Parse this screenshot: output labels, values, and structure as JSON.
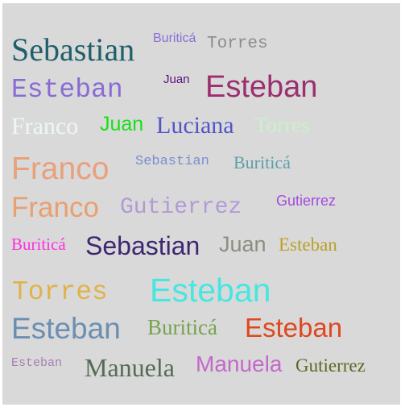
{
  "words": [
    {
      "text": "Sebastian",
      "color": "#1f5f6b"
    },
    {
      "text": "Buriticá",
      "color": "#8a6fd8"
    },
    {
      "text": "Torres",
      "color": "#8c8c8c"
    },
    {
      "text": "Esteban",
      "color": "#8a6bd6"
    },
    {
      "text": "Juan",
      "color": "#5a0f7a"
    },
    {
      "text": "Esteban",
      "color": "#9b2f6f"
    },
    {
      "text": "Franco",
      "color": "#eef8f2"
    },
    {
      "text": "Juan",
      "color": "#19e019"
    },
    {
      "text": "Luciana",
      "color": "#5156c6"
    },
    {
      "text": "Torres",
      "color": "#c9f2c9"
    },
    {
      "text": "Franco",
      "color": "#e9a07c"
    },
    {
      "text": "Sebastian",
      "color": "#7b8ed0"
    },
    {
      "text": "Buriticá",
      "color": "#5f9ea6"
    },
    {
      "text": "Franco",
      "color": "#e99f70"
    },
    {
      "text": "Gutierrez",
      "color": "#b19ad6"
    },
    {
      "text": "Gutierrez",
      "color": "#a64be0"
    },
    {
      "text": "Buriticá",
      "color": "#ff2fe0"
    },
    {
      "text": "Sebastian",
      "color": "#3d2770"
    },
    {
      "text": "Juan",
      "color": "#8a8f82"
    },
    {
      "text": "Esteban",
      "color": "#b9a12a"
    },
    {
      "text": "Torres",
      "color": "#e0b24a"
    },
    {
      "text": "Esteban",
      "color": "#48e6e0"
    },
    {
      "text": "Esteban",
      "color": "#6b8fb2"
    },
    {
      "text": "Buriticá",
      "color": "#77a34f"
    },
    {
      "text": "Esteban",
      "color": "#e0471f"
    },
    {
      "text": "Esteban",
      "color": "#a67fb2"
    },
    {
      "text": "Manuela",
      "color": "#566b56"
    },
    {
      "text": "Manuela",
      "color": "#c469c9"
    },
    {
      "text": "Gutierrez",
      "color": "#5a6a22"
    }
  ]
}
